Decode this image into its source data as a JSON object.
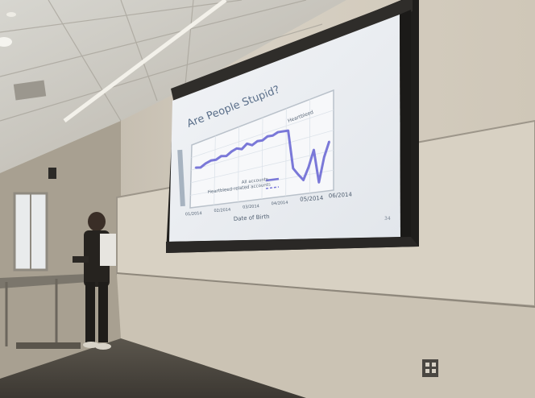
{
  "slide": {
    "title": "Are People Stupid?",
    "annotation_top": "Heartbleed",
    "legend_1": "All accounts",
    "legend_2": "Heartbleed-related accounts",
    "xlabel": "Date of Birth",
    "x_ticks": [
      "01/2014",
      "02/2014",
      "03/2014",
      "04/2014",
      "05/2014",
      "06/2014"
    ],
    "page_number": "34"
  },
  "chart_data": {
    "type": "line",
    "title": "Are People Stupid?",
    "xlabel": "Date of Birth",
    "ylabel": "",
    "grid": true,
    "series": [
      {
        "values": [
          0.62,
          0.6,
          0.64,
          0.66,
          0.65,
          0.68,
          0.66,
          0.7,
          0.72,
          0.69,
          0.74,
          0.7,
          0.73,
          0.72,
          0.75,
          0.74,
          0.76,
          0.75,
          0.74,
          0.3,
          0.22,
          0.15,
          0.28,
          0.45,
          0.1,
          0.35,
          0.5
        ],
        "color": "#7a78d8"
      }
    ],
    "ylim": [
      0,
      1
    ]
  },
  "colors": {
    "screen": "#eef1f5",
    "series": "#7a78d8",
    "title_text": "#5a6f8a",
    "wall": "#cdc6b8"
  }
}
